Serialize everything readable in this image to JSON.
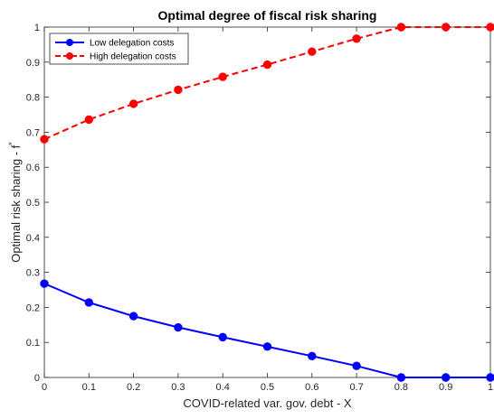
{
  "chart_data": {
    "type": "line",
    "title": "Optimal degree of fiscal risk sharing",
    "xlabel": "COVID-related var. gov. debt - X",
    "ylabel": "Optimal risk sharing - f",
    "ylabel_superscript": "*",
    "x": [
      0,
      0.1,
      0.2,
      0.3,
      0.4,
      0.5,
      0.6,
      0.7,
      0.8,
      0.9,
      1
    ],
    "xlim": [
      0,
      1
    ],
    "ylim": [
      0,
      1
    ],
    "xticks": [
      "0",
      "0.1",
      "0.2",
      "0.3",
      "0.4",
      "0.5",
      "0.6",
      "0.7",
      "0.8",
      "0.9",
      "1"
    ],
    "yticks": [
      "0",
      "0.1",
      "0.2",
      "0.3",
      "0.4",
      "0.5",
      "0.6",
      "0.7",
      "0.8",
      "0.9",
      "1"
    ],
    "grid": false,
    "legend_position": "top-left",
    "series": [
      {
        "name": "Low delegation costs",
        "color": "#0000ff",
        "line_style": "solid",
        "marker": "circle",
        "values": [
          0.268,
          0.214,
          0.175,
          0.143,
          0.115,
          0.088,
          0.061,
          0.033,
          0.0,
          0.0,
          0.0
        ]
      },
      {
        "name": "High delegation costs",
        "color": "#ff0000",
        "line_style": "dashed",
        "marker": "circle",
        "values": [
          0.68,
          0.736,
          0.781,
          0.821,
          0.858,
          0.893,
          0.93,
          0.967,
          1.0,
          1.0,
          1.0
        ]
      }
    ]
  }
}
